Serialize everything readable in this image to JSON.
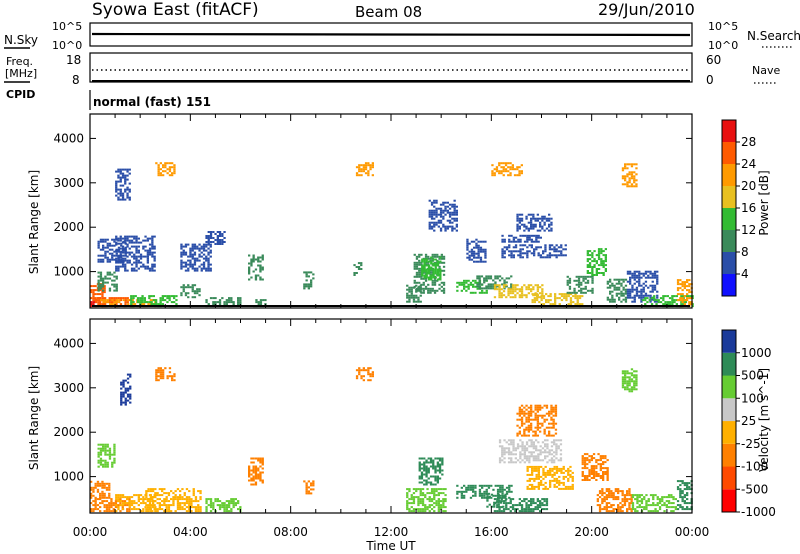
{
  "header": {
    "station": "Syowa East (fitACF)",
    "beam": "Beam 08",
    "date": "29/Jun/2010"
  },
  "noise_panel": {
    "left_label": "N.Sky",
    "left_ticks": [
      "10^5",
      "10^0"
    ],
    "right_label": "N.Search",
    "right_ticks": [
      "10^5",
      "10^0"
    ]
  },
  "freq_panel": {
    "left_label_line1": "Freq.",
    "left_label_line2": "[MHz]",
    "left_ticks": [
      "18",
      "8"
    ],
    "right_label": "Nave",
    "right_ticks": [
      "60",
      "0"
    ]
  },
  "cpid_panel": {
    "label": "CPID",
    "mode": "normal (fast) 151"
  },
  "colors": {
    "power": [
      "#1010ff",
      "#2a4ea8",
      "#3a8a5a",
      "#33bb33",
      "#e8c020",
      "#ff9a00",
      "#ff5a00",
      "#e81010"
    ],
    "velocity": [
      "#ff0000",
      "#ff4a00",
      "#ff8000",
      "#ffb000",
      "#c8c8c8",
      "#66cc33",
      "#2e8b57",
      "#1a3a9a"
    ]
  },
  "chart_data": [
    {
      "type": "heatmap",
      "name": "power",
      "ylabel": "Slant Range [km]",
      "yticks": [
        "1000",
        "2000",
        "3000",
        "4000"
      ],
      "ylim": [
        180,
        4550
      ],
      "xticks": [
        "00:00",
        "04:00",
        "08:00",
        "12:00",
        "16:00",
        "20:00",
        "00:00"
      ],
      "xlim_hours": [
        0,
        24
      ],
      "colorbar_label": "Power [dB]",
      "colorbar_ticks": [
        "4",
        "8",
        "12",
        "16",
        "20",
        "24",
        "28"
      ],
      "colorbar_range": [
        0,
        32
      ],
      "cells": [
        {
          "t0": 0.0,
          "t1": 0.6,
          "r0": 200,
          "r1": 700,
          "v": 24
        },
        {
          "t0": 0.0,
          "t1": 0.2,
          "r0": 200,
          "r1": 320,
          "v": 30
        },
        {
          "t0": 0.2,
          "t1": 1.6,
          "r0": 200,
          "r1": 420,
          "v": 26
        },
        {
          "t0": 0.4,
          "t1": 2.6,
          "r0": 200,
          "r1": 350,
          "v": 22
        },
        {
          "t0": 1.6,
          "t1": 3.4,
          "r0": 200,
          "r1": 450,
          "v": 14
        },
        {
          "t0": 0.3,
          "t1": 1.1,
          "r0": 550,
          "r1": 1000,
          "v": 9
        },
        {
          "t0": 0.3,
          "t1": 1.4,
          "r0": 1200,
          "r1": 1700,
          "v": 7
        },
        {
          "t0": 1.0,
          "t1": 2.6,
          "r0": 1000,
          "r1": 1800,
          "v": 6
        },
        {
          "t0": 1.0,
          "t1": 1.6,
          "r0": 2600,
          "r1": 3300,
          "v": 5
        },
        {
          "t0": 2.6,
          "t1": 3.4,
          "r0": 3150,
          "r1": 3450,
          "v": 20
        },
        {
          "t0": 3.6,
          "t1": 4.4,
          "r0": 400,
          "r1": 700,
          "v": 8
        },
        {
          "t0": 3.6,
          "t1": 4.8,
          "r0": 1000,
          "r1": 1600,
          "v": 6
        },
        {
          "t0": 4.6,
          "t1": 5.4,
          "r0": 1600,
          "r1": 1900,
          "v": 6
        },
        {
          "t0": 4.6,
          "t1": 6.0,
          "r0": 200,
          "r1": 400,
          "v": 10
        },
        {
          "t0": 6.3,
          "t1": 6.9,
          "r0": 800,
          "r1": 1350,
          "v": 9
        },
        {
          "t0": 6.5,
          "t1": 7.0,
          "r0": 200,
          "r1": 350,
          "v": 8
        },
        {
          "t0": 8.5,
          "t1": 8.9,
          "r0": 600,
          "r1": 1000,
          "v": 10
        },
        {
          "t0": 10.5,
          "t1": 10.8,
          "r0": 900,
          "r1": 1200,
          "v": 10
        },
        {
          "t0": 10.6,
          "t1": 11.3,
          "r0": 3150,
          "r1": 3450,
          "v": 20
        },
        {
          "t0": 12.6,
          "t1": 13.2,
          "r0": 300,
          "r1": 700,
          "v": 8
        },
        {
          "t0": 12.9,
          "t1": 14.1,
          "r0": 500,
          "r1": 1400,
          "v": 10
        },
        {
          "t0": 13.2,
          "t1": 14.0,
          "r0": 800,
          "r1": 1300,
          "v": 14
        },
        {
          "t0": 13.5,
          "t1": 14.6,
          "r0": 1900,
          "r1": 2600,
          "v": 5
        },
        {
          "t0": 14.6,
          "t1": 15.8,
          "r0": 500,
          "r1": 800,
          "v": 12
        },
        {
          "t0": 15.4,
          "t1": 16.8,
          "r0": 600,
          "r1": 900,
          "v": 11
        },
        {
          "t0": 15.0,
          "t1": 15.8,
          "r0": 1200,
          "r1": 1700,
          "v": 6
        },
        {
          "t0": 16.1,
          "t1": 18.0,
          "r0": 400,
          "r1": 700,
          "v": 18
        },
        {
          "t0": 16.0,
          "t1": 17.2,
          "r0": 3150,
          "r1": 3450,
          "v": 20
        },
        {
          "t0": 16.4,
          "t1": 19.0,
          "r0": 1300,
          "r1": 1600,
          "v": 6
        },
        {
          "t0": 16.4,
          "t1": 18.0,
          "r0": 1650,
          "r1": 1800,
          "v": 7
        },
        {
          "t0": 17.0,
          "t1": 18.4,
          "r0": 1900,
          "r1": 2300,
          "v": 6
        },
        {
          "t0": 17.6,
          "t1": 19.6,
          "r0": 200,
          "r1": 500,
          "v": 16
        },
        {
          "t0": 19.0,
          "t1": 20.0,
          "r0": 500,
          "r1": 900,
          "v": 10
        },
        {
          "t0": 19.8,
          "t1": 20.6,
          "r0": 900,
          "r1": 1500,
          "v": 13
        },
        {
          "t0": 20.6,
          "t1": 21.4,
          "r0": 300,
          "r1": 800,
          "v": 9
        },
        {
          "t0": 21.2,
          "t1": 21.8,
          "r0": 2900,
          "r1": 3400,
          "v": 20
        },
        {
          "t0": 21.4,
          "t1": 22.6,
          "r0": 300,
          "r1": 1000,
          "v": 7
        },
        {
          "t0": 22.0,
          "t1": 24.0,
          "r0": 200,
          "r1": 450,
          "v": 12
        },
        {
          "t0": 23.4,
          "t1": 24.0,
          "r0": 200,
          "r1": 800,
          "v": 22
        }
      ]
    },
    {
      "type": "heatmap",
      "name": "velocity",
      "ylabel": "Slant Range [km]",
      "yticks": [
        "1000",
        "2000",
        "3000",
        "4000"
      ],
      "ylim": [
        180,
        4550
      ],
      "xticks": [
        "00:00",
        "04:00",
        "08:00",
        "12:00",
        "16:00",
        "20:00",
        "00:00"
      ],
      "xlim_hours": [
        0,
        24
      ],
      "xlabel": "Time UT",
      "colorbar_label": "Velocity [m s^-1]",
      "colorbar_ticks": [
        "1000",
        "500",
        "100",
        "25",
        "-25",
        "-100",
        "-500",
        "-1000"
      ],
      "cells": [
        {
          "t0": 0.0,
          "t1": 1.6,
          "r0": 200,
          "r1": 500,
          "v": -300
        },
        {
          "t0": 0.0,
          "t1": 0.8,
          "r0": 500,
          "r1": 900,
          "v": -150
        },
        {
          "t0": 0.3,
          "t1": 1.0,
          "r0": 1200,
          "r1": 1700,
          "v": 60
        },
        {
          "t0": 1.0,
          "t1": 2.6,
          "r0": 200,
          "r1": 600,
          "v": -80
        },
        {
          "t0": 1.2,
          "t1": 1.6,
          "r0": 2600,
          "r1": 3300,
          "v": 800
        },
        {
          "t0": 2.6,
          "t1": 3.4,
          "r0": 3150,
          "r1": 3450,
          "v": -120
        },
        {
          "t0": 2.2,
          "t1": 4.4,
          "r0": 200,
          "r1": 700,
          "v": -60
        },
        {
          "t0": 4.6,
          "t1": 6.0,
          "r0": 200,
          "r1": 500,
          "v": 50
        },
        {
          "t0": 6.3,
          "t1": 6.9,
          "r0": 800,
          "r1": 1400,
          "v": -250
        },
        {
          "t0": 8.5,
          "t1": 8.9,
          "r0": 600,
          "r1": 900,
          "v": -150
        },
        {
          "t0": 10.6,
          "t1": 11.3,
          "r0": 3150,
          "r1": 3450,
          "v": -120
        },
        {
          "t0": 12.6,
          "t1": 14.2,
          "r0": 200,
          "r1": 700,
          "v": 70
        },
        {
          "t0": 13.1,
          "t1": 14.0,
          "r0": 800,
          "r1": 1400,
          "v": 400
        },
        {
          "t0": 14.6,
          "t1": 16.8,
          "r0": 500,
          "r1": 800,
          "v": 200
        },
        {
          "t0": 15.8,
          "t1": 16.6,
          "r0": 300,
          "r1": 600,
          "v": 150
        },
        {
          "t0": 16.1,
          "t1": 18.2,
          "r0": 200,
          "r1": 500,
          "v": 120
        },
        {
          "t0": 16.3,
          "t1": 18.8,
          "r0": 1300,
          "r1": 1800,
          "v": 0
        },
        {
          "t0": 17.0,
          "t1": 18.6,
          "r0": 1900,
          "r1": 2600,
          "v": -200
        },
        {
          "t0": 17.4,
          "t1": 19.2,
          "r0": 700,
          "r1": 1200,
          "v": -100
        },
        {
          "t0": 19.6,
          "t1": 20.6,
          "r0": 900,
          "r1": 1500,
          "v": -250
        },
        {
          "t0": 20.2,
          "t1": 21.6,
          "r0": 200,
          "r1": 700,
          "v": -200
        },
        {
          "t0": 21.2,
          "t1": 21.8,
          "r0": 2900,
          "r1": 3400,
          "v": 80
        },
        {
          "t0": 21.6,
          "t1": 23.4,
          "r0": 200,
          "r1": 600,
          "v": 60
        },
        {
          "t0": 23.4,
          "t1": 24.0,
          "r0": 200,
          "r1": 900,
          "v": 150
        }
      ]
    }
  ]
}
